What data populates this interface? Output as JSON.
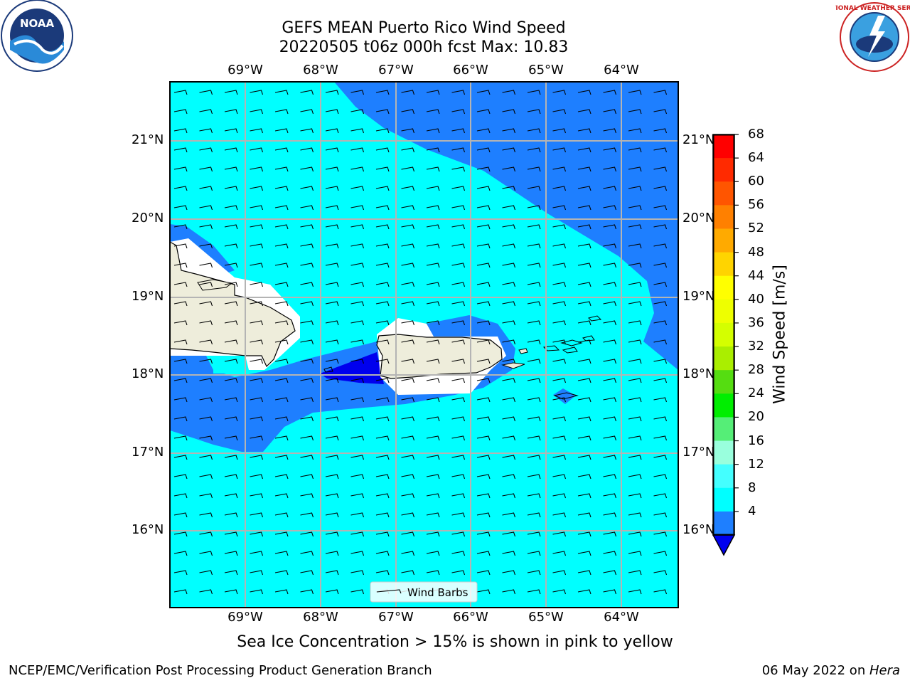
{
  "title": {
    "line1": "GEFS MEAN Puerto Rico Wind Speed",
    "line2": "20220505 t06z 000h fcst   Max: 10.83"
  },
  "lon_labels": [
    "69°W",
    "68°W",
    "67°W",
    "66°W",
    "65°W",
    "64°W"
  ],
  "lat_labels": [
    "21°N",
    "20°N",
    "19°N",
    "18°N",
    "17°N",
    "16°N"
  ],
  "colorbar": {
    "label": "Wind Speed [m/s]",
    "ticks": [
      "68",
      "64",
      "60",
      "56",
      "52",
      "48",
      "44",
      "40",
      "36",
      "32",
      "28",
      "24",
      "20",
      "16",
      "12",
      "8",
      "4"
    ],
    "colors": [
      "#ff0000",
      "#ff2a00",
      "#ff5500",
      "#ff8000",
      "#ffaa00",
      "#ffd400",
      "#ffff00",
      "#eeff00",
      "#d4ff00",
      "#aaee00",
      "#55dd11",
      "#00ee00",
      "#55ee77",
      "#99ffdd",
      "#44ffff",
      "#00ffff",
      "#1e7fff"
    ],
    "under_color": "#0000ee"
  },
  "legend": {
    "label": "Wind Barbs"
  },
  "colors": {
    "sea_light": "#00ffff",
    "sea_mid": "#1e7fff",
    "sea_dark": "#0000ee",
    "land": "#eeeddb"
  },
  "subtitle": "Sea Ice Concentration > 15% is shown in pink to yellow",
  "footer": {
    "left": "NCEP/EMC/Verification Post Processing Product Generation Branch",
    "date": "06 May 2022 on ",
    "machine": "Hera"
  },
  "logos": {
    "noaa": "NOAA",
    "nws": "NATIONAL WEATHER SERVICE"
  }
}
